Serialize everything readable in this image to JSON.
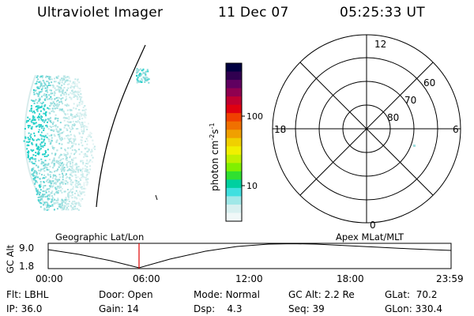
{
  "header": {
    "instrument": "Ultraviolet Imager",
    "date": "11 Dec 07",
    "time": "05:25:33 UT"
  },
  "colorbar": {
    "unit_label": "photon cm",
    "unit_exp1": "-2",
    "unit_mid": "s",
    "unit_exp2": "-1",
    "ticks": [
      "100",
      "10"
    ],
    "colors": [
      "#000040",
      "#300050",
      "#600060",
      "#900050",
      "#c00030",
      "#e00010",
      "#f04000",
      "#f07000",
      "#f0a000",
      "#f0d000",
      "#f0f000",
      "#c0f000",
      "#80f000",
      "#30e030",
      "#00d0a0",
      "#40e0e0",
      "#a0e8e8",
      "#d8f0f0",
      "#f0f8f8"
    ]
  },
  "polar": {
    "mlt_labels": {
      "top": "12",
      "left": "18",
      "right": "6",
      "bottom": "0"
    },
    "lat_labels": [
      "60",
      "70",
      "80"
    ]
  },
  "timeline": {
    "left_label": "Geographic Lat/Lon",
    "right_label": "Apex MLat/MLT",
    "y_axis_title": "GC Alt",
    "y_ticks": [
      "9.0",
      "1.8"
    ],
    "x_ticks": [
      "00:00",
      "06:00",
      "12:00",
      "18:00",
      "23:59"
    ]
  },
  "info_rows": [
    [
      {
        "key": "Flt:",
        "value": "LBHL"
      },
      {
        "key": "Door:",
        "value": "Open"
      },
      {
        "key": "Mode:",
        "value": "Normal"
      },
      {
        "key": "GC Alt:",
        "value": "2.2 Re"
      },
      {
        "key": "GLat:",
        "value": "70.2"
      }
    ],
    [
      {
        "key": "IP:",
        "value": "36.0"
      },
      {
        "key": "Gain:",
        "value": "14"
      },
      {
        "key": "Dsp:",
        "value": "4.3"
      },
      {
        "key": "Seq:",
        "value": "39"
      },
      {
        "key": "GLon:",
        "value": "330.4"
      }
    ]
  ]
}
